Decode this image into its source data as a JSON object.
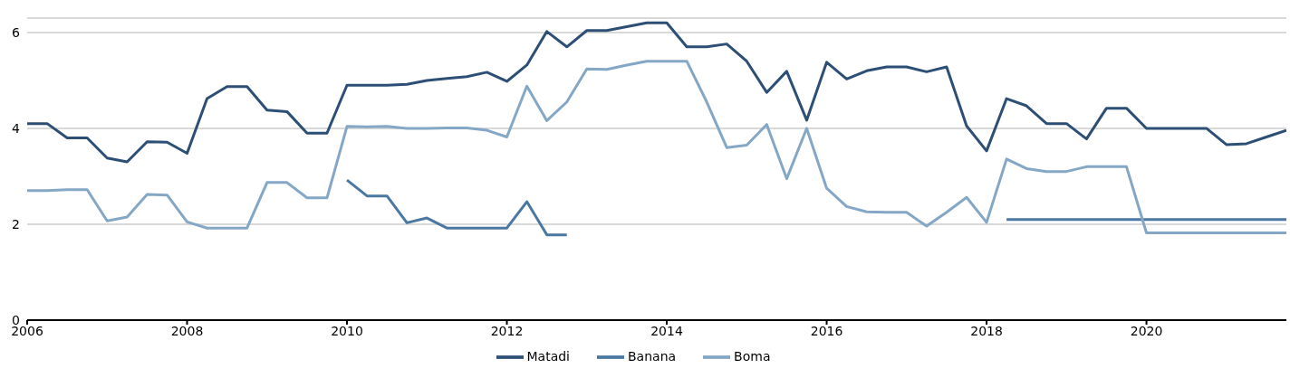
{
  "chart_data": {
    "type": "line",
    "x": [
      2006,
      2006.25,
      2006.5,
      2006.75,
      2007,
      2007.25,
      2007.5,
      2007.75,
      2008,
      2008.25,
      2008.5,
      2008.75,
      2009,
      2009.25,
      2009.5,
      2009.75,
      2010,
      2010.25,
      2010.5,
      2010.75,
      2011,
      2011.25,
      2011.5,
      2011.75,
      2012,
      2012.25,
      2012.5,
      2012.75,
      2013,
      2013.25,
      2013.5,
      2013.75,
      2014,
      2014.25,
      2014.5,
      2014.75,
      2015,
      2015.25,
      2015.5,
      2015.75,
      2016,
      2016.25,
      2016.5,
      2016.75,
      2017,
      2017.25,
      2017.5,
      2017.75,
      2018,
      2018.25,
      2018.5,
      2018.75,
      2019,
      2019.25,
      2019.5,
      2019.75,
      2020,
      2020.25,
      2020.5,
      2020.75,
      2021,
      2021.25,
      2021.5,
      2021.75
    ],
    "series": [
      {
        "name": "Matadi",
        "color": "#2d4f75",
        "values": [
          4.1,
          4.1,
          3.8,
          3.8,
          3.38,
          3.3,
          3.72,
          3.71,
          3.48,
          4.62,
          4.87,
          4.87,
          4.38,
          4.35,
          3.9,
          3.9,
          4.9,
          4.9,
          4.9,
          4.92,
          5.0,
          5.04,
          5.08,
          5.17,
          4.98,
          5.32,
          6.02,
          5.7,
          6.04,
          6.04,
          6.12,
          6.2,
          6.2,
          5.7,
          5.7,
          5.76,
          5.4,
          4.75,
          5.19,
          4.17,
          5.38,
          5.03,
          5.2,
          5.28,
          5.28,
          5.18,
          5.28,
          4.05,
          3.53,
          4.62,
          4.47,
          4.1,
          4.1,
          3.78,
          4.42,
          4.42,
          4.0,
          4.0,
          4.0,
          4.0,
          3.66,
          3.68,
          3.82,
          3.96
        ]
      },
      {
        "name": "Banana",
        "color": "#4a78a3",
        "values": [
          null,
          null,
          null,
          null,
          null,
          null,
          null,
          null,
          null,
          null,
          null,
          null,
          null,
          null,
          null,
          null,
          2.92,
          2.59,
          2.59,
          2.03,
          2.13,
          1.92,
          1.92,
          1.92,
          1.92,
          2.47,
          1.78,
          1.78,
          null,
          null,
          null,
          null,
          null,
          null,
          null,
          null,
          null,
          null,
          null,
          null,
          null,
          null,
          null,
          null,
          null,
          null,
          null,
          null,
          null,
          2.1,
          2.1,
          2.1,
          2.1,
          2.1,
          2.1,
          2.1,
          2.1,
          2.1,
          2.1,
          2.1,
          2.1,
          2.1,
          2.1,
          2.1
        ]
      },
      {
        "name": "Boma",
        "color": "#85a7c6",
        "values": [
          2.7,
          2.7,
          2.72,
          2.72,
          2.07,
          2.15,
          2.62,
          2.61,
          2.05,
          1.92,
          1.92,
          1.92,
          2.87,
          2.87,
          2.55,
          2.55,
          4.04,
          4.03,
          4.04,
          4.0,
          4.0,
          4.01,
          4.01,
          3.96,
          3.82,
          4.88,
          4.16,
          4.55,
          5.24,
          5.23,
          5.32,
          5.4,
          5.4,
          5.4,
          4.55,
          3.6,
          3.65,
          4.08,
          2.95,
          4.0,
          2.75,
          2.37,
          2.26,
          2.25,
          2.25,
          1.96,
          2.25,
          2.56,
          2.04,
          3.36,
          3.16,
          3.1,
          3.1,
          3.2,
          3.2,
          3.2,
          1.82,
          1.82,
          1.82,
          1.82,
          1.82,
          1.82,
          1.82,
          1.82
        ]
      }
    ],
    "xlim": [
      2006,
      2021.75
    ],
    "xticks": [
      2006,
      2008,
      2010,
      2012,
      2014,
      2016,
      2018,
      2020
    ],
    "ylim": [
      0,
      6.3
    ],
    "yticks": [
      0,
      2,
      4,
      6
    ],
    "grid": "y",
    "legend": "bottom",
    "marker": "none",
    "line_style": "solid"
  }
}
